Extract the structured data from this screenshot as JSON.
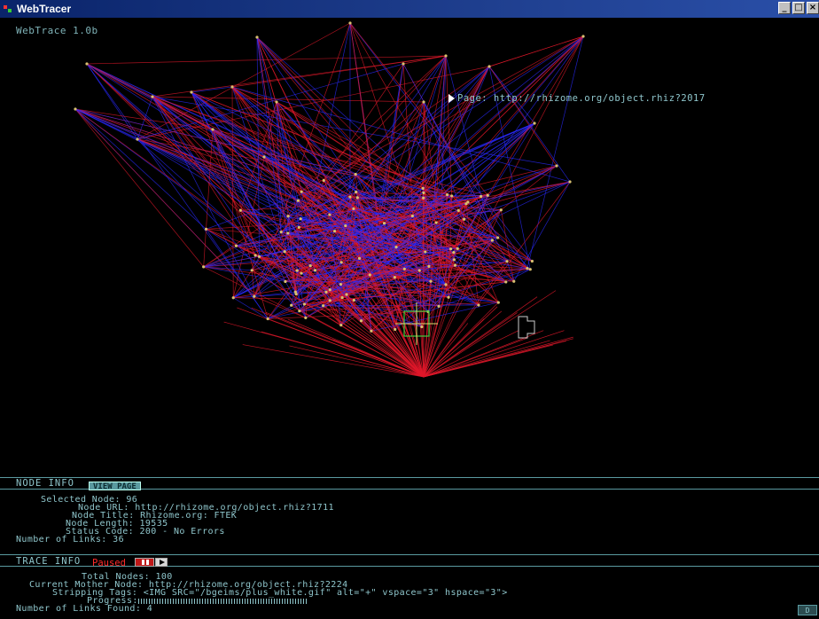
{
  "window": {
    "title": "WebTracer",
    "controls": [
      "_",
      "□",
      "×"
    ]
  },
  "app": {
    "name": "WebTrace 1.0b"
  },
  "graph": {
    "page_label": "Page: http://rhizome.org/object.rhiz?2017"
  },
  "node_info": {
    "title": "NODE INFO",
    "view_page_button": "VIEW PAGE",
    "rows": [
      {
        "label": "Selected Node:",
        "value": "96"
      },
      {
        "label": "Node URL:",
        "value": "http://rhizome.org/object.rhiz?1711"
      },
      {
        "label": "Node Title:",
        "value": "Rhizome.org: FTEK"
      },
      {
        "label": "Node Length:",
        "value": "19535"
      },
      {
        "label": "Status Code:",
        "value": "200 - No Errors"
      },
      {
        "label": "Number of Links:",
        "value": "36"
      }
    ]
  },
  "trace_info": {
    "title": "TRACE INFO",
    "status": "Paused",
    "rows": [
      {
        "label": "Total Nodes:",
        "value": "100"
      },
      {
        "label": "Current Mother Node:",
        "value": "http://rhizome.org/object.rhiz?2224"
      },
      {
        "label": "Stripping Tags:",
        "value": "<IMG SRC=\"/bgeims/plus_white.gif\" alt=\"+\" vspace=\"3\" hspace=\"3\">"
      },
      {
        "label": "Progress:",
        "value": ""
      },
      {
        "label": "Number of Links Found:",
        "value": "4"
      }
    ]
  },
  "corner_button": "D",
  "colors": {
    "link_red": "#e0182a",
    "link_blue": "#2a2aff",
    "node": "#d8c070",
    "selection": "#3fcf3f",
    "text": "#8fc6cc",
    "paused": "#ff2a2a"
  }
}
